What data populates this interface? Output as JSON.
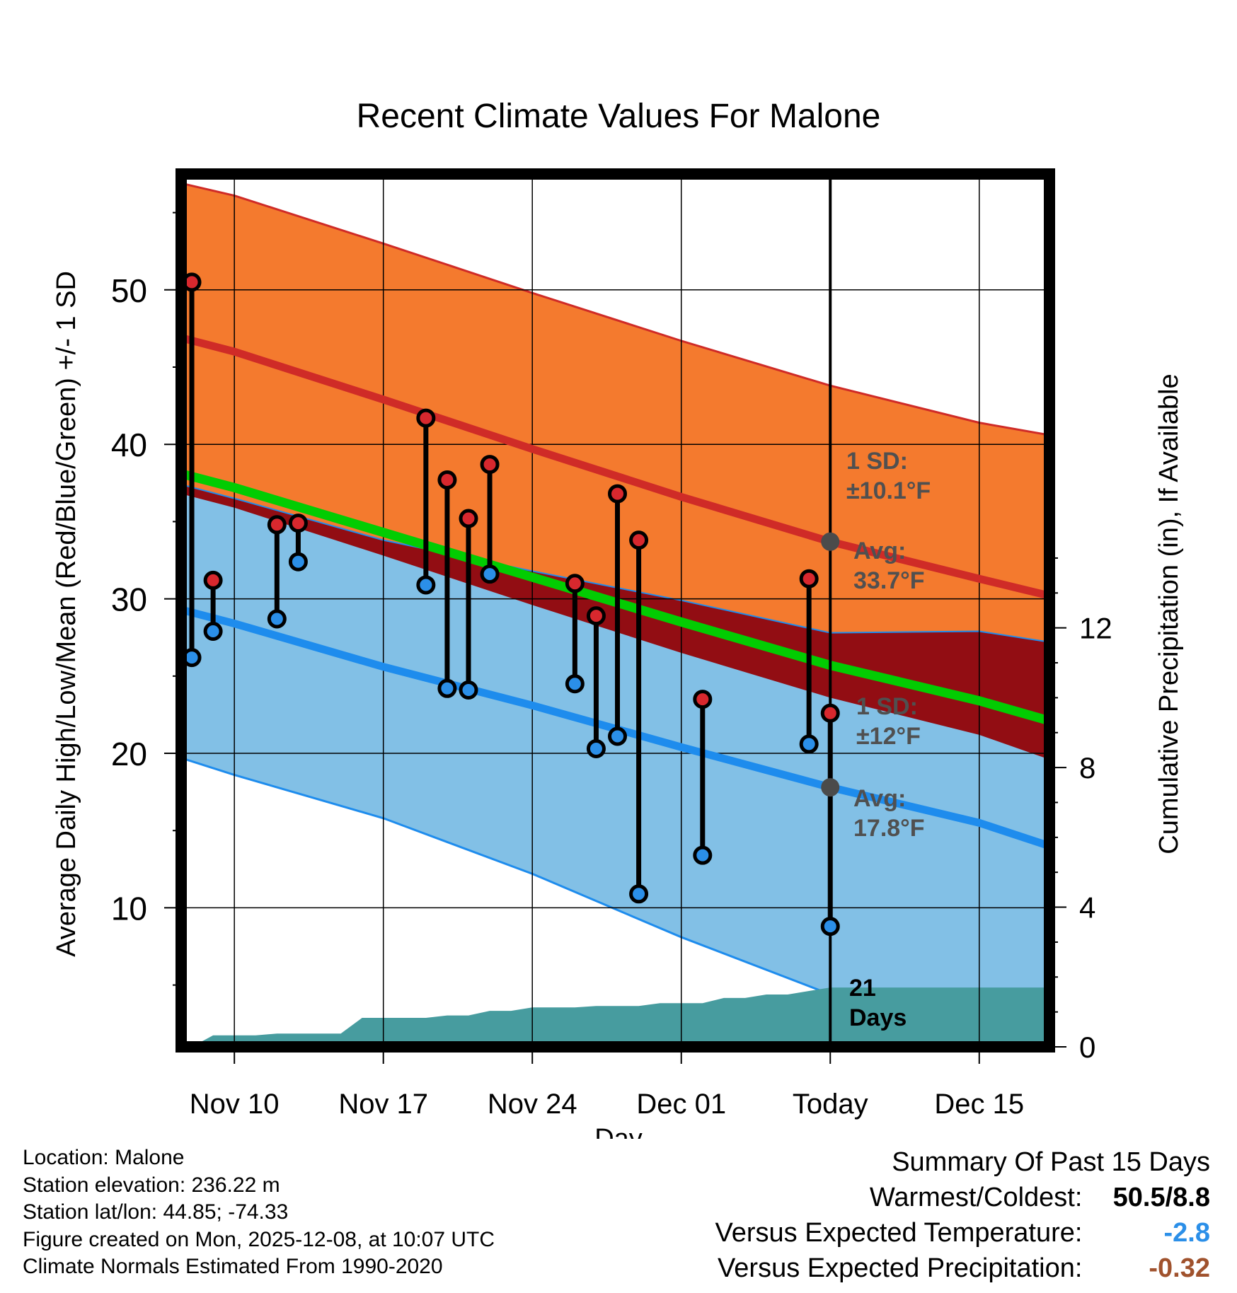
{
  "chart_data": {
    "type": "line",
    "title": "Recent Climate Values For Malone",
    "xlabel": "Day",
    "ylabel_left": "Average Daily High/Low/Mean (Red/Blue/Green) +/- 1 SD",
    "ylabel_right": "Cumulative Precipitation (in), If Available",
    "x_tick_labels": [
      "Nov 10",
      "Nov 17",
      "Nov 24",
      "Dec 01",
      "Today",
      "Dec 15"
    ],
    "x_tick_days": [
      2,
      9,
      16,
      23,
      30,
      37
    ],
    "xlim_days": [
      -0.5,
      40.3
    ],
    "ylim_left": [
      1,
      57.5
    ],
    "yticks_left": [
      10,
      20,
      30,
      40,
      50
    ],
    "ylim_right": [
      0,
      25
    ],
    "yticks_right": [
      0,
      4,
      8,
      12
    ],
    "today_day": 30,
    "normals": {
      "days": [
        -0.5,
        2,
        9,
        16,
        23,
        30,
        37,
        40.3
      ],
      "high_avg": [
        46.9,
        46.0,
        42.9,
        39.7,
        36.6,
        33.7,
        31.3,
        30.2
      ],
      "high_plus_sd": [
        56.9,
        56.1,
        53.0,
        49.8,
        46.7,
        43.8,
        41.4,
        40.6
      ],
      "high_minus_sd": [
        36.8,
        35.9,
        32.8,
        29.6,
        26.5,
        23.6,
        21.2,
        19.6
      ],
      "low_avg": [
        29.3,
        28.4,
        25.6,
        23.1,
        20.4,
        17.8,
        15.5,
        14.0
      ],
      "low_plus_sd": [
        37.4,
        36.5,
        33.8,
        31.8,
        29.9,
        27.8,
        27.9,
        27.2
      ],
      "low_minus_sd": [
        19.7,
        18.6,
        15.8,
        12.2,
        8.1,
        4.4,
        1.0,
        1.0
      ],
      "mean_avg": [
        38.1,
        37.2,
        34.3,
        31.4,
        28.5,
        25.7,
        23.4,
        22.1
      ]
    },
    "series": [
      {
        "name": "Daily High/Low",
        "days": [
          0,
          1,
          4,
          5,
          11,
          12,
          13,
          14,
          18,
          19,
          20,
          21,
          24,
          29,
          30
        ],
        "high": [
          50.5,
          31.2,
          34.8,
          34.9,
          41.7,
          37.7,
          35.2,
          38.7,
          31.0,
          28.9,
          36.8,
          33.8,
          23.5,
          31.3,
          22.6
        ],
        "low": [
          26.2,
          27.9,
          28.7,
          32.4,
          30.9,
          24.2,
          24.1,
          31.6,
          24.5,
          20.3,
          21.1,
          10.9,
          13.4,
          20.6,
          8.8
        ]
      }
    ],
    "precipitation": {
      "days": [
        0,
        1,
        2,
        3,
        4,
        5,
        6,
        7,
        8,
        9,
        10,
        11,
        12,
        13,
        14,
        15,
        16,
        17,
        18,
        19,
        20,
        21,
        22,
        23,
        24,
        25,
        26,
        27,
        28,
        29,
        30,
        40.3
      ],
      "cumulative": [
        0,
        0.33,
        0.33,
        0.33,
        0.38,
        0.38,
        0.38,
        0.38,
        0.83,
        0.83,
        0.83,
        0.83,
        0.9,
        0.9,
        1.03,
        1.03,
        1.13,
        1.13,
        1.13,
        1.17,
        1.17,
        1.17,
        1.25,
        1.25,
        1.25,
        1.4,
        1.4,
        1.5,
        1.5,
        1.6,
        1.7,
        1.7
      ]
    },
    "annotations": {
      "high_sd": [
        "1 SD:",
        "±10.1°F"
      ],
      "high_avg": [
        "Avg:",
        "33.7°F"
      ],
      "low_sd": [
        "1 SD:",
        "±12°F"
      ],
      "low_avg": [
        "Avg:",
        "17.8°F"
      ],
      "days": [
        "21",
        "Days"
      ]
    },
    "colors": {
      "high_band": "#f47a2e",
      "high_line": "#cf2b27",
      "low_band": "#82c0e6",
      "low_line": "#1e8ced",
      "overlap": "#920d13",
      "mean_line": "#02cc02",
      "precip": "#479c9f",
      "annotation": "#505050"
    }
  },
  "meta": {
    "location": "Location: Malone",
    "elevation": "Station elevation: 236.22 m",
    "latlon": "Station lat/lon: 44.85; -74.33",
    "created": "Figure created on Mon, 2025-12-08, at 10:07 UTC",
    "normals": "Climate Normals Estimated From 1990-2020"
  },
  "summary": {
    "title": "Summary Of Past 15 Days",
    "rows": [
      {
        "label": "Warmest/Coldest:",
        "value": "50.5/8.8",
        "color": "#000000"
      },
      {
        "label": "Versus Expected Temperature:",
        "value": "-2.8",
        "color": "#2b8fe8"
      },
      {
        "label": "Versus Expected Precipitation:",
        "value": "-0.32",
        "color": "#a0522d"
      }
    ]
  }
}
